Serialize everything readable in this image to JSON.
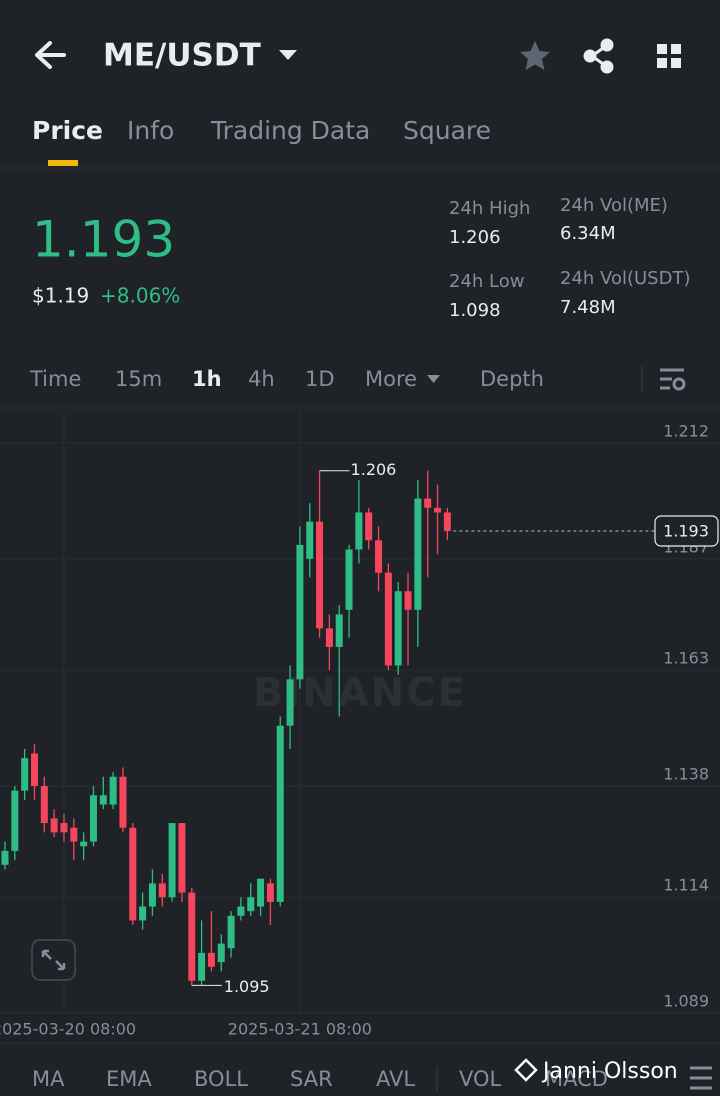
{
  "header": {
    "pair": "ME/USDT"
  },
  "tabs": [
    "Price",
    "Info",
    "Trading Data",
    "Square"
  ],
  "ticker": {
    "last": "1.193",
    "usd": "$1.19",
    "change": "+8.06%"
  },
  "stats": [
    {
      "label": "24h High",
      "value": "1.206"
    },
    {
      "label": "24h Low",
      "value": "1.098"
    },
    {
      "label": "24h Vol(ME)",
      "value": "6.34M"
    },
    {
      "label": "24h Vol(USDT)",
      "value": "7.48M"
    }
  ],
  "intervals": [
    "Time",
    "15m",
    "1h",
    "4h",
    "1D",
    "More",
    "Depth"
  ],
  "indicators": [
    "MA",
    "EMA",
    "BOLL",
    "SAR",
    "AVL",
    "VOL",
    "MACD"
  ],
  "watermark": "Janni Olsson",
  "chart_data": {
    "type": "candlestick",
    "watermark": "BINANCE",
    "categories": [
      null,
      null,
      null,
      null,
      null,
      null,
      "2025-03-20 08:00",
      null,
      null,
      null,
      null,
      null,
      null,
      null,
      null,
      null,
      null,
      null,
      null,
      null,
      null,
      null,
      null,
      null,
      null,
      null,
      null,
      null,
      null,
      null,
      "2025-03-21 08:00",
      null,
      null,
      null,
      null,
      null,
      null,
      null,
      null,
      null,
      null,
      null,
      null,
      null,
      null,
      null
    ],
    "open": [
      1.121,
      1.124,
      1.137,
      1.145,
      1.138,
      1.131,
      1.13,
      1.129,
      1.125,
      1.126,
      1.134,
      1.134,
      1.14,
      1.129,
      1.109,
      1.112,
      1.117,
      1.114,
      1.13,
      1.115,
      1.096,
      1.102,
      1.1,
      1.103,
      1.11,
      1.111,
      1.112,
      1.117,
      1.113,
      1.151,
      1.161,
      1.187,
      1.195,
      1.172,
      1.168,
      1.176,
      1.189,
      1.197,
      1.191,
      1.184,
      1.164,
      1.18,
      1.176,
      1.2,
      1.198,
      1.197
    ],
    "high": [
      1.126,
      1.138,
      1.146,
      1.147,
      1.14,
      1.133,
      1.132,
      1.131,
      1.128,
      1.138,
      1.14,
      1.141,
      1.142,
      1.13,
      1.115,
      1.12,
      1.119,
      1.13,
      1.13,
      1.116,
      1.109,
      1.111,
      1.106,
      1.111,
      1.114,
      1.117,
      1.118,
      1.118,
      1.153,
      1.164,
      1.194,
      1.199,
      1.206,
      1.175,
      1.177,
      1.19,
      1.204,
      1.198,
      1.194,
      1.186,
      1.182,
      1.184,
      1.204,
      1.206,
      1.203,
      1.198
    ],
    "low": [
      1.12,
      1.122,
      1.135,
      1.135,
      1.128,
      1.127,
      1.126,
      1.122,
      1.122,
      1.125,
      1.133,
      1.133,
      1.128,
      1.108,
      1.107,
      1.11,
      1.112,
      1.113,
      1.113,
      1.095,
      1.095,
      1.098,
      1.098,
      1.101,
      1.109,
      1.11,
      1.11,
      1.108,
      1.112,
      1.146,
      1.159,
      1.183,
      1.17,
      1.163,
      1.153,
      1.17,
      1.186,
      1.189,
      1.18,
      1.163,
      1.162,
      1.164,
      1.168,
      1.183,
      1.188,
      1.191
    ],
    "close": [
      1.124,
      1.137,
      1.144,
      1.138,
      1.13,
      1.128,
      1.128,
      1.126,
      1.126,
      1.136,
      1.136,
      1.14,
      1.129,
      1.109,
      1.112,
      1.117,
      1.114,
      1.13,
      1.115,
      1.096,
      1.102,
      1.099,
      1.104,
      1.11,
      1.112,
      1.114,
      1.118,
      1.113,
      1.151,
      1.161,
      1.19,
      1.195,
      1.172,
      1.168,
      1.175,
      1.189,
      1.197,
      1.191,
      1.184,
      1.164,
      1.18,
      1.176,
      1.2,
      1.198,
      1.197,
      1.193
    ],
    "up_color": "#2ebd85",
    "down_color": "#f6465d",
    "ylim": [
      1.0886,
      1.2191
    ],
    "yticks": [
      1.212,
      1.187,
      1.163,
      1.138,
      1.114,
      1.089
    ],
    "grid": true,
    "last_price": 1.193,
    "max_marker": 1.206,
    "min_marker": 1.095
  }
}
